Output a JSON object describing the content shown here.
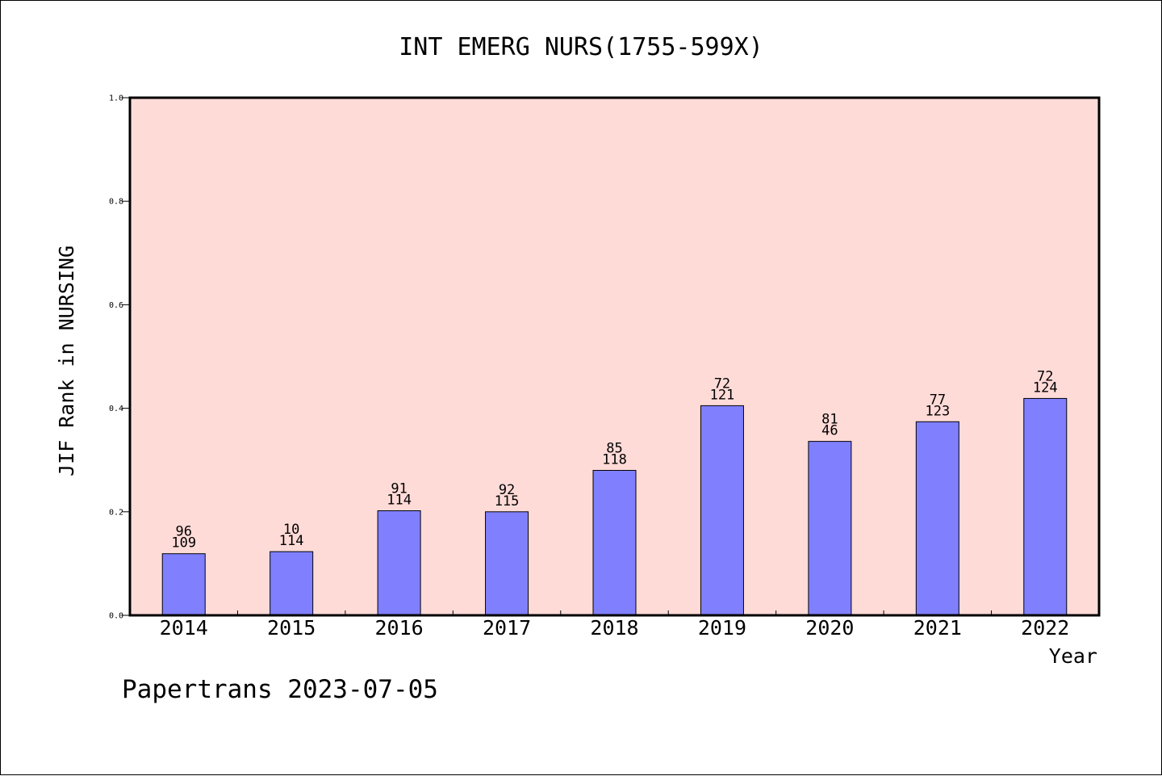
{
  "chart_data": {
    "type": "bar",
    "title": "INT EMERG NURS(1755-599X)",
    "xlabel": "Year",
    "ylabel": "JIF Rank in NURSING",
    "ylim": [
      0,
      1.0
    ],
    "yticks": [
      "0.0",
      "0.2",
      "0.4",
      "0.6",
      "0.8",
      "1.0"
    ],
    "categories": [
      "2014",
      "2015",
      "2016",
      "2017",
      "2018",
      "2019",
      "2020",
      "2021",
      "2022"
    ],
    "values": [
      0.119,
      0.123,
      0.202,
      0.2,
      0.28,
      0.405,
      0.336,
      0.374,
      0.419
    ],
    "labels_top": [
      "96",
      "10",
      "91",
      "92",
      "85",
      "72",
      "81",
      "77",
      "72"
    ],
    "labels_bottom": [
      "109",
      "114",
      "114",
      "115",
      "118",
      "121",
      "46",
      "123",
      "124"
    ],
    "grid": false,
    "colors": {
      "plot_background": "#FFDBD8",
      "bar_fill": "#8080FF",
      "bar_stroke": "#000000"
    }
  },
  "footer": {
    "text": "Papertrans 2023-07-05"
  }
}
